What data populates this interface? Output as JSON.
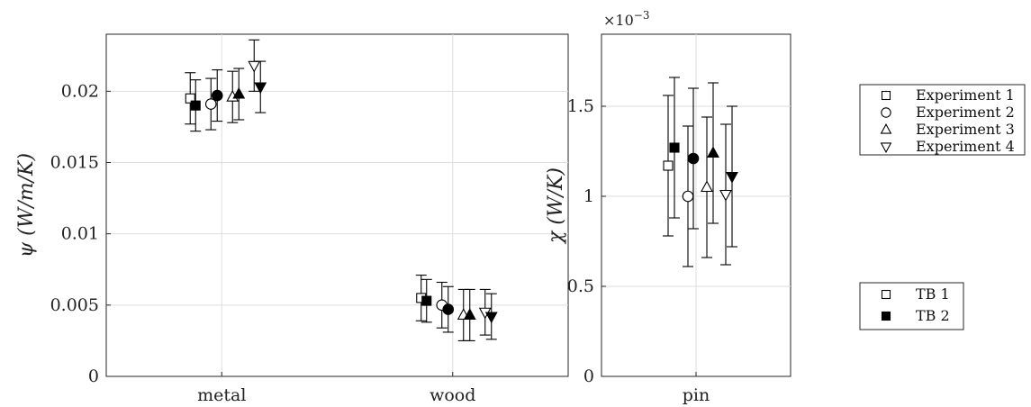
{
  "chart_data": [
    {
      "type": "scatter",
      "panel": "left",
      "ylabel": "ψ (W/m/K)",
      "categories": [
        "metal",
        "wood"
      ],
      "ylim": [
        0,
        0.024
      ],
      "yticks": [
        0,
        0.005,
        0.01,
        0.015,
        0.02
      ],
      "ytick_labels": [
        "0",
        "0.005",
        "0.01",
        "0.015",
        "0.02"
      ],
      "grid": true,
      "series": [
        {
          "experiment": 1,
          "tb": 1,
          "values": [
            0.0195,
            0.0055
          ],
          "err": [
            0.0018,
            0.0016
          ]
        },
        {
          "experiment": 1,
          "tb": 2,
          "values": [
            0.019,
            0.0053
          ],
          "err": [
            0.0018,
            0.0015
          ]
        },
        {
          "experiment": 2,
          "tb": 1,
          "values": [
            0.0191,
            0.005
          ],
          "err": [
            0.0018,
            0.0016
          ]
        },
        {
          "experiment": 2,
          "tb": 2,
          "values": [
            0.0197,
            0.0047
          ],
          "err": [
            0.0018,
            0.0016
          ]
        },
        {
          "experiment": 3,
          "tb": 1,
          "values": [
            0.0196,
            0.0043
          ],
          "err": [
            0.0018,
            0.0018
          ]
        },
        {
          "experiment": 3,
          "tb": 2,
          "values": [
            0.0198,
            0.0043
          ],
          "err": [
            0.0018,
            0.0018
          ]
        },
        {
          "experiment": 4,
          "tb": 1,
          "values": [
            0.0218,
            0.0045
          ],
          "err": [
            0.0018,
            0.0016
          ]
        },
        {
          "experiment": 4,
          "tb": 2,
          "values": [
            0.0203,
            0.0042
          ],
          "err": [
            0.0018,
            0.0016
          ]
        }
      ]
    },
    {
      "type": "scatter",
      "panel": "right",
      "ylabel": "χ (W/K)",
      "exponent_label": "×10",
      "exponent_power": "−3",
      "categories": [
        "pin"
      ],
      "ylim": [
        0,
        1.9
      ],
      "yticks": [
        0,
        0.5,
        1,
        1.5
      ],
      "ytick_labels": [
        "0",
        "0.5",
        "1",
        "1.5"
      ],
      "grid": true,
      "series": [
        {
          "experiment": 1,
          "tb": 1,
          "values": [
            1.17
          ],
          "err": [
            0.39
          ]
        },
        {
          "experiment": 1,
          "tb": 2,
          "values": [
            1.27
          ],
          "err": [
            0.39
          ]
        },
        {
          "experiment": 2,
          "tb": 1,
          "values": [
            1.0
          ],
          "err": [
            0.39
          ]
        },
        {
          "experiment": 2,
          "tb": 2,
          "values": [
            1.21
          ],
          "err": [
            0.39
          ]
        },
        {
          "experiment": 3,
          "tb": 1,
          "values": [
            1.05
          ],
          "err": [
            0.39
          ]
        },
        {
          "experiment": 3,
          "tb": 2,
          "values": [
            1.24
          ],
          "err": [
            0.39
          ]
        },
        {
          "experiment": 4,
          "tb": 1,
          "values": [
            1.01
          ],
          "err": [
            0.39
          ]
        },
        {
          "experiment": 4,
          "tb": 2,
          "values": [
            1.11
          ],
          "err": [
            0.39
          ]
        }
      ]
    }
  ],
  "legend_experiments": {
    "items": [
      {
        "label": "Experiment 1",
        "marker": "square"
      },
      {
        "label": "Experiment 2",
        "marker": "circle"
      },
      {
        "label": "Experiment 3",
        "marker": "triangle-up"
      },
      {
        "label": "Experiment 4",
        "marker": "triangle-down"
      }
    ]
  },
  "legend_tb": {
    "items": [
      {
        "label": "TB 1",
        "fill": "open"
      },
      {
        "label": "TB 2",
        "fill": "filled"
      }
    ]
  }
}
